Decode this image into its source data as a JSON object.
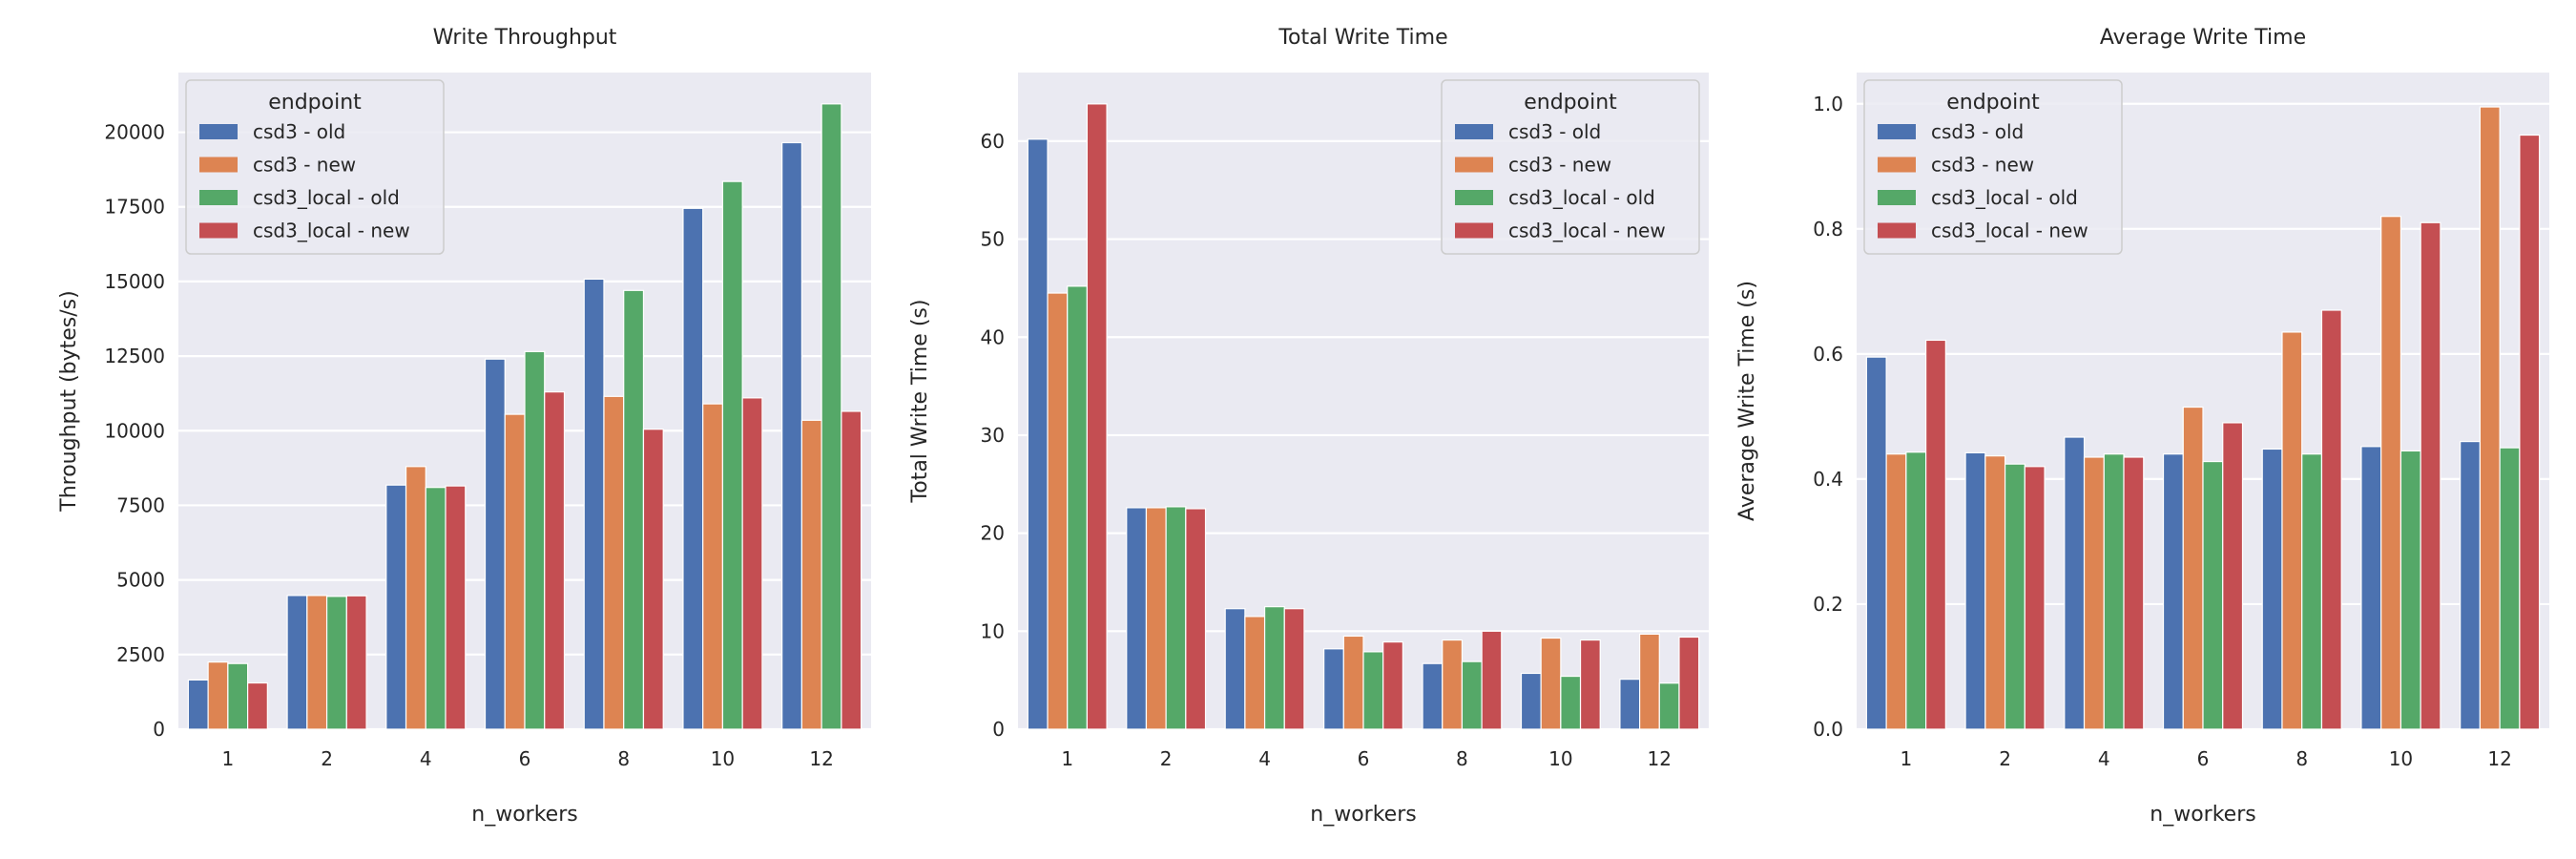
{
  "figure": {
    "background": "#ffffff",
    "plot_background": "#eaeaf2",
    "grid_color": "#ffffff"
  },
  "chart_data": [
    {
      "type": "bar",
      "title": "Write Throughput",
      "xlabel": "n_workers",
      "ylabel": "Throughput (bytes/s)",
      "categories": [
        "1",
        "2",
        "4",
        "6",
        "8",
        "10",
        "12"
      ],
      "ylim": [
        0,
        22000
      ],
      "yticks": [
        0,
        2500,
        5000,
        7500,
        10000,
        12500,
        15000,
        17500,
        20000
      ],
      "ytick_labels": [
        "0",
        "2500",
        "5000",
        "7500",
        "10000",
        "12500",
        "15000",
        "17500",
        "20000"
      ],
      "grid": true,
      "legend": {
        "title": "endpoint",
        "placement": "upper left"
      },
      "series": [
        {
          "name": "csd3 - old",
          "color": "#4c72b0",
          "values": [
            1650,
            4480,
            8180,
            12400,
            15080,
            17450,
            19650
          ]
        },
        {
          "name": "csd3 - new",
          "color": "#dd8452",
          "values": [
            2250,
            4480,
            8800,
            10550,
            11150,
            10900,
            10350
          ]
        },
        {
          "name": "csd3_local - old",
          "color": "#55a868",
          "values": [
            2200,
            4450,
            8100,
            12650,
            14700,
            18350,
            20950
          ]
        },
        {
          "name": "csd3_local - new",
          "color": "#c44e52",
          "values": [
            1550,
            4470,
            8150,
            11300,
            10050,
            11100,
            10650
          ]
        }
      ]
    },
    {
      "type": "bar",
      "title": "Total Write Time",
      "xlabel": "n_workers",
      "ylabel": "Total Write Time (s)",
      "categories": [
        "1",
        "2",
        "4",
        "6",
        "8",
        "10",
        "12"
      ],
      "ylim": [
        0,
        67
      ],
      "yticks": [
        0,
        10,
        20,
        30,
        40,
        50,
        60
      ],
      "ytick_labels": [
        "0",
        "10",
        "20",
        "30",
        "40",
        "50",
        "60"
      ],
      "grid": true,
      "legend": {
        "title": "endpoint",
        "placement": "upper right"
      },
      "series": [
        {
          "name": "csd3 - old",
          "color": "#4c72b0",
          "values": [
            60.2,
            22.6,
            12.3,
            8.2,
            6.7,
            5.7,
            5.1
          ]
        },
        {
          "name": "csd3 - new",
          "color": "#dd8452",
          "values": [
            44.5,
            22.6,
            11.5,
            9.5,
            9.1,
            9.3,
            9.7
          ]
        },
        {
          "name": "csd3_local - old",
          "color": "#55a868",
          "values": [
            45.2,
            22.7,
            12.5,
            7.9,
            6.9,
            5.4,
            4.7
          ]
        },
        {
          "name": "csd3_local - new",
          "color": "#c44e52",
          "values": [
            63.8,
            22.5,
            12.3,
            8.9,
            10.0,
            9.1,
            9.4
          ]
        }
      ]
    },
    {
      "type": "bar",
      "title": "Average Write Time",
      "xlabel": "n_workers",
      "ylabel": "Average Write Time (s)",
      "categories": [
        "1",
        "2",
        "4",
        "6",
        "8",
        "10",
        "12"
      ],
      "ylim": [
        0,
        1.05
      ],
      "yticks": [
        0,
        0.2,
        0.4,
        0.6,
        0.8,
        1.0
      ],
      "ytick_labels": [
        "0.0",
        "0.2",
        "0.4",
        "0.6",
        "0.8",
        "1.0"
      ],
      "grid": true,
      "legend": {
        "title": "endpoint",
        "placement": "upper left"
      },
      "series": [
        {
          "name": "csd3 - old",
          "color": "#4c72b0",
          "values": [
            0.595,
            0.442,
            0.467,
            0.44,
            0.448,
            0.452,
            0.46
          ]
        },
        {
          "name": "csd3 - new",
          "color": "#dd8452",
          "values": [
            0.44,
            0.437,
            0.435,
            0.515,
            0.635,
            0.82,
            0.995
          ]
        },
        {
          "name": "csd3_local - old",
          "color": "#55a868",
          "values": [
            0.443,
            0.424,
            0.44,
            0.428,
            0.44,
            0.445,
            0.45
          ]
        },
        {
          "name": "csd3_local - new",
          "color": "#c44e52",
          "values": [
            0.622,
            0.42,
            0.435,
            0.49,
            0.67,
            0.81,
            0.95
          ]
        }
      ]
    }
  ]
}
